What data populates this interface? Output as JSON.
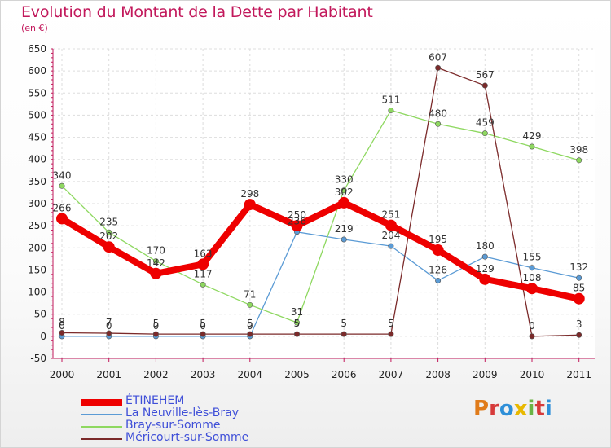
{
  "title": "Evolution du Montant de la Dette par Habitant",
  "subtitle": "(en €)",
  "logo": {
    "text": "Proxiti",
    "colors": [
      "#e07b1a",
      "#d63a3a",
      "#2e8fd8",
      "#e8b800",
      "#6ab344",
      "#d63a3a",
      "#2e8fd8"
    ]
  },
  "chart_data": {
    "type": "line",
    "x": [
      "2000",
      "2001",
      "2002",
      "2003",
      "2004",
      "2005",
      "2006",
      "2007",
      "2008",
      "2009",
      "2010",
      "2011"
    ],
    "ylim": [
      -50,
      650
    ],
    "yticks": [
      -50,
      0,
      50,
      100,
      150,
      200,
      250,
      300,
      350,
      400,
      450,
      500,
      550,
      600,
      650
    ],
    "grid": true,
    "legend_position": "bottom-left",
    "series": [
      {
        "name": "ÉTINEHEM",
        "color": "#ee0000",
        "thick": true,
        "values": [
          266,
          202,
          142,
          163,
          298,
          250,
          302,
          251,
          195,
          129,
          108,
          85
        ],
        "labels": [
          "266",
          "202",
          "142",
          "163",
          "298",
          "250",
          "302",
          "251",
          "195",
          "129",
          "108",
          "85"
        ]
      },
      {
        "name": "La Neuville-lès-Bray",
        "color": "#5b9bd5",
        "thick": false,
        "values": [
          0,
          0,
          0,
          0,
          0,
          236,
          219,
          204,
          126,
          180,
          155,
          132
        ],
        "labels": [
          "0",
          "0",
          "0",
          "0",
          "0",
          "236",
          "219",
          "204",
          "126",
          "180",
          "155",
          "132"
        ]
      },
      {
        "name": "Bray-sur-Somme",
        "color": "#8ed860",
        "thick": false,
        "values": [
          340,
          235,
          170,
          117,
          71,
          31,
          330,
          511,
          480,
          459,
          429,
          398
        ],
        "labels": [
          "340",
          "235",
          "170",
          "117",
          "71",
          "31",
          "330",
          "511",
          "480",
          "459",
          "429",
          "398"
        ]
      },
      {
        "name": "Méricourt-sur-Somme",
        "color": "#7b2a2a",
        "thick": false,
        "values": [
          8,
          7,
          5,
          5,
          5,
          5,
          5,
          5,
          607,
          567,
          0,
          3
        ],
        "labels": [
          "8",
          "7",
          "5",
          "5",
          "5",
          "5",
          "5",
          "5",
          "607",
          "567",
          "0",
          "3"
        ]
      }
    ]
  }
}
